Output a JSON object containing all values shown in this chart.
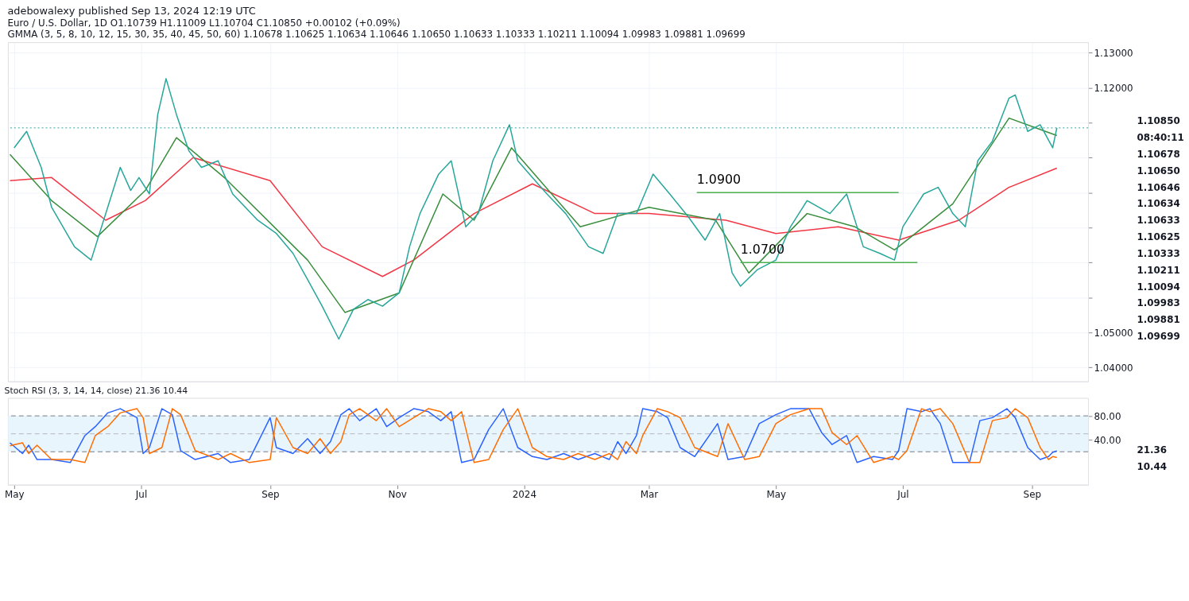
{
  "chart_data": [
    {
      "type": "line",
      "title": "adebowalexy published Sep 13, 2024 12:19 UTC",
      "subtitle": "Euro / U.S. Dollar, 1D  O1.10739  H1.11009  L1.10704  C1.10850  +0.00102 (+0.09%)\nGMMA (3, 5, 8, 10, 12, 15, 30, 35, 40, 45, 50, 60)  1.10678  1.10625  1.10634  1.10646  1.10650  1.10633  1.10333  1.10211  1.10094  1.09983  1.09881  1.09699",
      "xlim": [
        "2023-04-28",
        "2024-09-28"
      ],
      "xticks": [
        {
          "value": "2023-05-01",
          "label": null
        },
        {
          "value": "2023-07-01",
          "label": null
        },
        {
          "value": "2023-09-01",
          "label": null
        },
        {
          "value": "2023-11-01",
          "label": null
        },
        {
          "value": "2024-01-01",
          "label": null
        },
        {
          "value": "2024-03-01",
          "label": null
        },
        {
          "value": "2024-05-01",
          "label": null
        },
        {
          "value": "2024-07-01",
          "label": null
        },
        {
          "value": "2024-09-01",
          "label": null
        }
      ],
      "ylim": [
        1.036,
        1.133
      ],
      "yticks": [
        {
          "value": 1.04,
          "label": "1.04000"
        },
        {
          "value": 1.05,
          "label": "1.05000"
        },
        {
          "value": 1.06,
          "label": null
        },
        {
          "value": 1.07,
          "label": null
        },
        {
          "value": 1.08,
          "label": null
        },
        {
          "value": 1.09,
          "label": null
        },
        {
          "value": 1.1,
          "label": null
        },
        {
          "value": 1.11,
          "label": null
        },
        {
          "value": 1.12,
          "label": "1.12000"
        },
        {
          "value": 1.13,
          "label": "1.13000"
        }
      ],
      "tick_labels": "y",
      "grid": true,
      "series": [
        {
          "color": "#f23645",
          "x": [
            "2023-04-29",
            "2023-05-19",
            "2023-06-14",
            "2023-07-03",
            "2023-07-26",
            "2023-09-01",
            "2023-09-26",
            "2023-10-25",
            "2023-11-09",
            "2023-12-08",
            "2024-01-05",
            "2024-02-04",
            "2024-03-01",
            "2024-04-07",
            "2024-05-01",
            "2024-05-31",
            "2024-06-29",
            "2024-07-28",
            "2024-08-21",
            "2024-09-13"
          ],
          "values": [
            1.0934,
            1.0943,
            1.0821,
            1.0877,
            1.1,
            1.0934,
            1.0745,
            1.066,
            1.0707,
            1.084,
            1.0925,
            1.084,
            1.084,
            1.0821,
            1.0783,
            1.0802,
            1.0764,
            1.0821,
            1.0915,
            1.097
          ]
        },
        {
          "color": "#388e3c",
          "x": [
            "2023-04-29",
            "2023-05-19",
            "2023-06-10",
            "2023-07-03",
            "2023-07-18",
            "2023-08-10",
            "2023-09-19",
            "2023-10-07",
            "2023-11-02",
            "2023-11-23",
            "2023-12-08",
            "2023-12-26",
            "2024-01-28",
            "2024-03-01",
            "2024-04-02",
            "2024-04-18",
            "2024-05-16",
            "2024-06-08",
            "2024-06-27",
            "2024-07-25",
            "2024-08-21",
            "2024-09-13"
          ],
          "values": [
            1.1009,
            1.0877,
            1.0774,
            1.0906,
            1.1057,
            1.0943,
            1.0707,
            1.0557,
            1.0613,
            1.0896,
            1.0821,
            1.1028,
            1.0802,
            1.0858,
            1.0821,
            1.067,
            1.084,
            1.0802,
            1.0736,
            1.0868,
            1.1113,
            1.1063
          ]
        },
        {
          "color": "#26a69a",
          "x": [
            "2023-05-01",
            "2023-05-07",
            "2023-05-14",
            "2023-05-19",
            "2023-05-30",
            "2023-06-07",
            "2023-06-10",
            "2023-06-21",
            "2023-06-26",
            "2023-06-30",
            "2023-07-05",
            "2023-07-09",
            "2023-07-13",
            "2023-07-18",
            "2023-07-24",
            "2023-07-30",
            "2023-08-07",
            "2023-08-14",
            "2023-08-26",
            "2023-09-04",
            "2023-09-12",
            "2023-09-19",
            "2023-09-26",
            "2023-10-04",
            "2023-10-11",
            "2023-10-18",
            "2023-10-25",
            "2023-11-02",
            "2023-11-07",
            "2023-11-12",
            "2023-11-21",
            "2023-11-27",
            "2023-12-04",
            "2023-12-10",
            "2023-12-17",
            "2023-12-25",
            "2023-12-29",
            "2024-01-05",
            "2024-01-12",
            "2024-01-21",
            "2024-02-01",
            "2024-02-08",
            "2024-02-15",
            "2024-02-24",
            "2024-03-03",
            "2024-03-11",
            "2024-03-20",
            "2024-03-28",
            "2024-04-04",
            "2024-04-10",
            "2024-04-14",
            "2024-04-22",
            "2024-05-01",
            "2024-05-08",
            "2024-05-16",
            "2024-05-27",
            "2024-06-04",
            "2024-06-12",
            "2024-06-20",
            "2024-06-27",
            "2024-07-01",
            "2024-07-11",
            "2024-07-18",
            "2024-07-25",
            "2024-07-31",
            "2024-08-06",
            "2024-08-13",
            "2024-08-21",
            "2024-08-24",
            "2024-08-30",
            "2024-09-05",
            "2024-09-11",
            "2024-09-13"
          ],
          "values": [
            1.1028,
            1.1075,
            1.0972,
            1.0858,
            1.0745,
            1.0707,
            1.0764,
            1.0972,
            1.0906,
            1.0943,
            1.0896,
            1.1123,
            1.1226,
            1.1123,
            1.1019,
            1.0972,
            1.0991,
            1.0896,
            1.0821,
            1.0783,
            1.0726,
            1.0651,
            1.0575,
            1.0481,
            1.0566,
            1.0594,
            1.0575,
            1.0613,
            1.0745,
            1.084,
            1.0953,
            1.0991,
            1.0802,
            1.084,
            1.0991,
            1.1094,
            1.0991,
            1.0943,
            1.0896,
            1.084,
            1.0745,
            1.0726,
            1.084,
            1.084,
            1.0953,
            1.0896,
            1.083,
            1.0764,
            1.084,
            1.067,
            1.0632,
            1.0679,
            1.0707,
            1.0802,
            1.0877,
            1.084,
            1.0896,
            1.0745,
            1.0726,
            1.0707,
            1.0802,
            1.0896,
            1.0915,
            1.084,
            1.0802,
            1.0991,
            1.1047,
            1.117,
            1.1179,
            1.1075,
            1.1094,
            1.1028,
            1.1085
          ]
        },
        {
          "color": "#4caf50",
          "x": [
            "2024-03-24",
            "2024-06-29"
          ],
          "values": [
            1.09,
            1.09
          ]
        },
        {
          "color": "#4caf50",
          "x": [
            "2024-04-14",
            "2024-07-08"
          ],
          "values": [
            1.07,
            1.07
          ]
        }
      ],
      "ref_lines": [
        {
          "axis": "y",
          "value": 1.1085,
          "color": "#26a69a",
          "line_style": "dotted"
        }
      ],
      "annotations": [
        {
          "text": "1.0900",
          "x": "2024-03-24",
          "y": 1.09
        },
        {
          "text": "1.0700",
          "x": "2024-04-14",
          "y": 1.07
        },
        "1.10850",
        "08:40:11",
        "1.10678",
        "1.10650",
        "1.10646",
        "1.10634",
        "1.10633",
        "1.10625",
        "1.10333",
        "1.10211",
        "1.10094",
        "1.09983",
        "1.09881",
        "1.09699"
      ]
    },
    {
      "type": "line",
      "title": "Stoch RSI (3, 3, 14, 14, close)  21.36  10.44",
      "xlim": [
        "2023-04-28",
        "2024-09-28"
      ],
      "xticks": [
        {
          "value": "2023-05-01",
          "label": "May"
        },
        {
          "value": "2023-07-01",
          "label": "Jul"
        },
        {
          "value": "2023-09-01",
          "label": "Sep"
        },
        {
          "value": "2023-11-01",
          "label": "Nov"
        },
        {
          "value": "2024-01-01",
          "label": "2024"
        },
        {
          "value": "2024-03-01",
          "label": "Mar"
        },
        {
          "value": "2024-05-01",
          "label": "May"
        },
        {
          "value": "2024-07-01",
          "label": "Jul"
        },
        {
          "value": "2024-09-01",
          "label": "Sep"
        }
      ],
      "ylim": [
        -35,
        110
      ],
      "yticks": [
        {
          "value": 40,
          "label": "40.00"
        },
        {
          "value": 80,
          "label": "80.00"
        }
      ],
      "x": [
        "2023-04-29",
        "2023-05-05",
        "2023-05-08",
        "2023-05-12",
        "2023-05-19",
        "2023-05-28",
        "2023-06-04",
        "2023-06-09",
        "2023-06-15",
        "2023-06-21",
        "2023-06-29",
        "2023-07-02",
        "2023-07-05",
        "2023-07-11",
        "2023-07-16",
        "2023-07-20",
        "2023-07-27",
        "2023-08-07",
        "2023-08-13",
        "2023-08-22",
        "2023-09-01",
        "2023-09-04",
        "2023-09-12",
        "2023-09-19",
        "2023-09-25",
        "2023-09-30",
        "2023-10-05",
        "2023-10-09",
        "2023-10-14",
        "2023-10-22",
        "2023-10-27",
        "2023-11-02",
        "2023-11-09",
        "2023-11-16",
        "2023-11-22",
        "2023-11-27",
        "2023-12-02",
        "2023-12-08",
        "2023-12-15",
        "2023-12-22",
        "2023-12-29",
        "2024-01-05",
        "2024-01-12",
        "2024-01-20",
        "2024-01-27",
        "2024-02-04",
        "2024-02-11",
        "2024-02-15",
        "2024-02-19",
        "2024-02-24",
        "2024-02-27",
        "2024-03-05",
        "2024-03-10",
        "2024-03-16",
        "2024-03-23",
        "2024-04-03",
        "2024-04-08",
        "2024-04-16",
        "2024-04-23",
        "2024-05-01",
        "2024-05-08",
        "2024-05-17",
        "2024-05-23",
        "2024-05-28",
        "2024-06-04",
        "2024-06-09",
        "2024-06-17",
        "2024-06-26",
        "2024-06-29",
        "2024-07-03",
        "2024-07-10",
        "2024-07-14",
        "2024-07-19",
        "2024-07-25",
        "2024-08-02",
        "2024-08-07",
        "2024-08-13",
        "2024-08-20",
        "2024-08-24",
        "2024-08-30",
        "2024-09-05",
        "2024-09-09",
        "2024-09-11",
        "2024-09-13"
      ],
      "series": [
        {
          "color": "#2962ff",
          "values": [
            35,
            17,
            31,
            7,
            7,
            2,
            47,
            62,
            85,
            92,
            77,
            17,
            27,
            92,
            82,
            22,
            7,
            17,
            2,
            7,
            77,
            27,
            17,
            42,
            17,
            37,
            82,
            92,
            72,
            92,
            62,
            77,
            92,
            87,
            72,
            87,
            2,
            7,
            57,
            92,
            27,
            12,
            7,
            17,
            7,
            17,
            7,
            37,
            17,
            47,
            92,
            87,
            77,
            27,
            12,
            67,
            7,
            12,
            67,
            82,
            92,
            92,
            52,
            32,
            47,
            2,
            12,
            7,
            22,
            92,
            87,
            92,
            67,
            2,
            2,
            72,
            77,
            92,
            77,
            27,
            7,
            12,
            19,
            21.36
          ]
        },
        {
          "color": "#ff6d00",
          "values": [
            30,
            35,
            17,
            31,
            7,
            7,
            2,
            47,
            62,
            85,
            92,
            77,
            17,
            27,
            92,
            82,
            22,
            7,
            17,
            2,
            7,
            77,
            27,
            17,
            42,
            17,
            37,
            82,
            92,
            72,
            92,
            62,
            77,
            92,
            87,
            72,
            87,
            2,
            7,
            57,
            92,
            27,
            12,
            7,
            17,
            7,
            17,
            7,
            37,
            17,
            47,
            92,
            87,
            77,
            27,
            12,
            67,
            7,
            12,
            67,
            82,
            92,
            92,
            52,
            32,
            47,
            2,
            12,
            7,
            22,
            92,
            87,
            92,
            67,
            2,
            2,
            72,
            77,
            92,
            77,
            27,
            7,
            12,
            10.44
          ]
        }
      ],
      "bands": [
        {
          "axis": "y",
          "from": 20,
          "to": 80,
          "color": "#e3f2fd"
        }
      ],
      "ref_lines": [
        {
          "axis": "y",
          "value": 80,
          "color": "#787b86",
          "line_style": "dashed"
        },
        {
          "axis": "y",
          "value": 50,
          "color": "#b2b5be",
          "line_style": "dashed"
        },
        {
          "axis": "y",
          "value": 20,
          "color": "#787b86",
          "line_style": "dashed"
        }
      ],
      "annotations": [
        "21.36",
        "10.44"
      ]
    }
  ]
}
